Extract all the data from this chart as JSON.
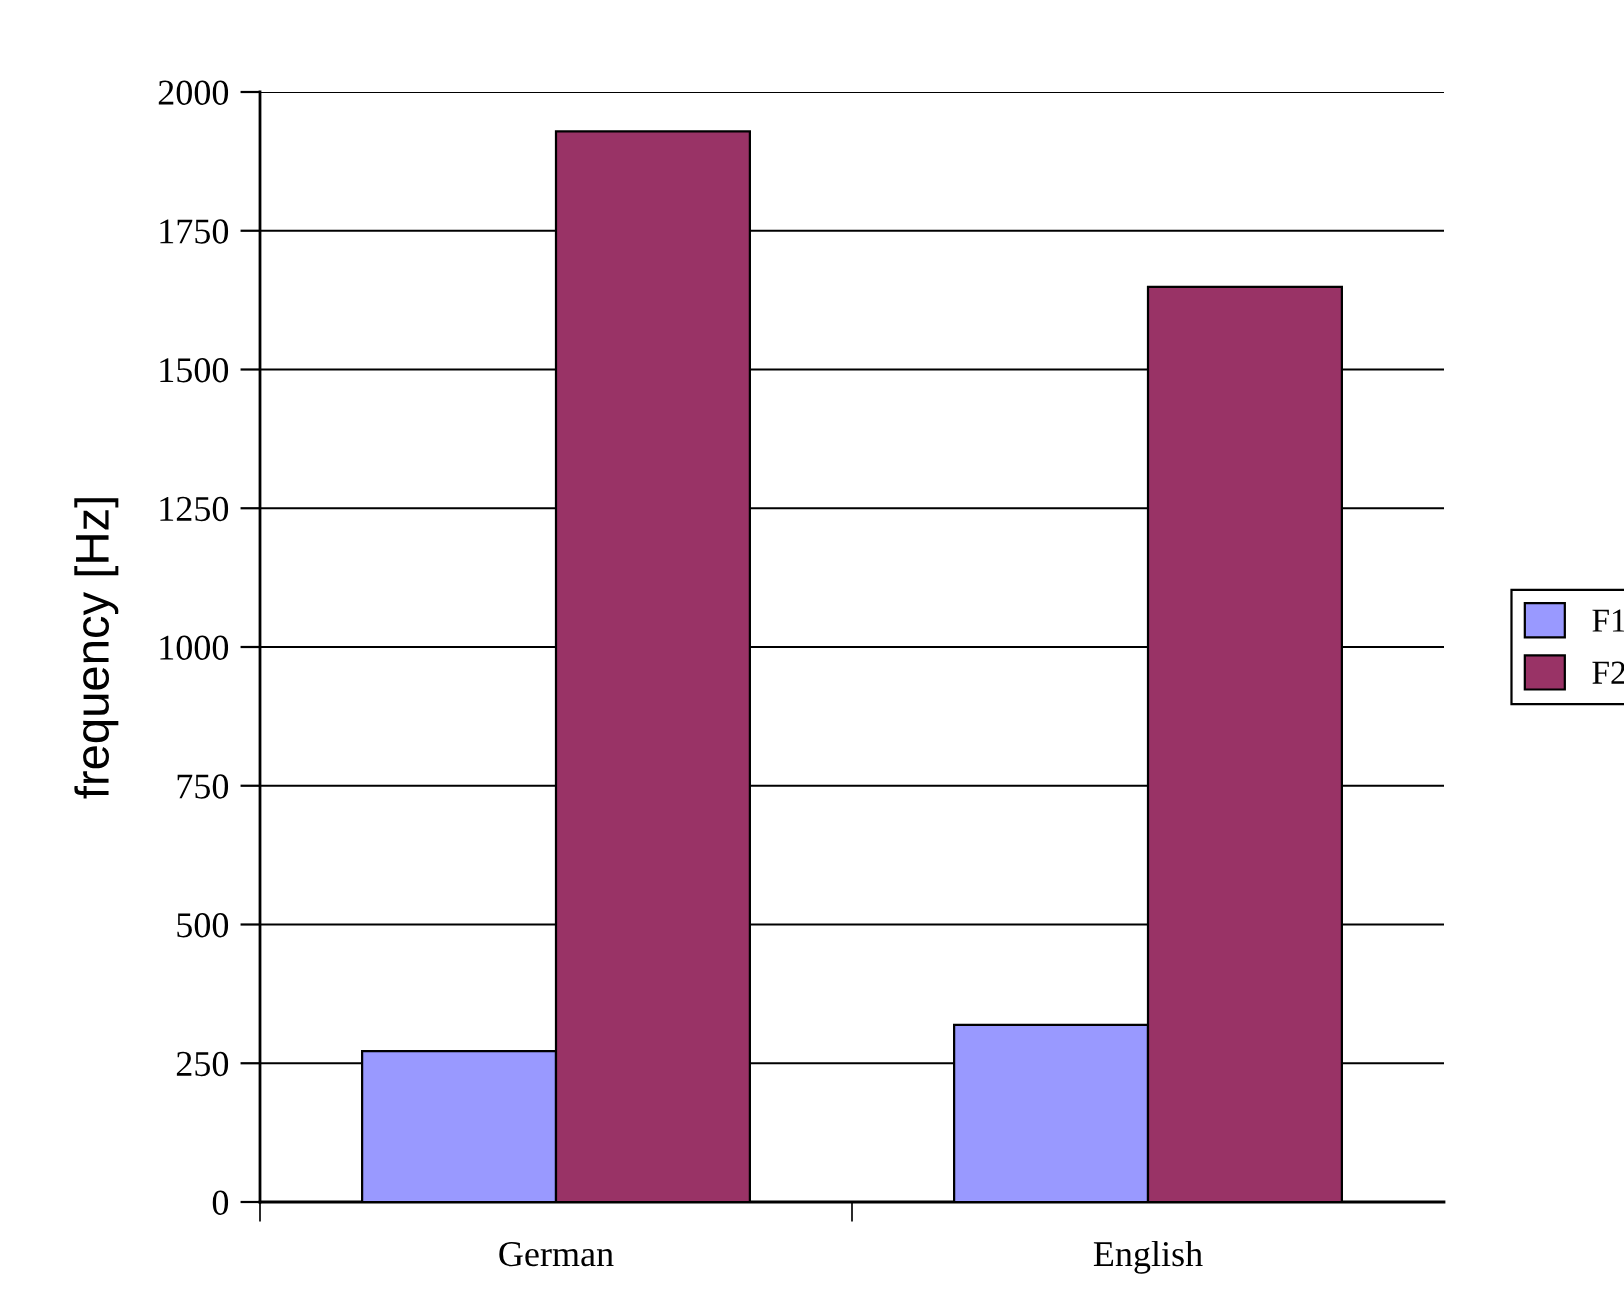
{
  "chart_data": {
    "type": "bar",
    "ylabel": "frequency [Hz]",
    "categories": [
      "German",
      "English"
    ],
    "series": [
      {
        "name": "F1",
        "color": "#9999ff",
        "values": [
          272,
          319
        ]
      },
      {
        "name": "F2",
        "color": "#993366",
        "values": [
          1929,
          1649
        ]
      }
    ],
    "ylim": [
      0,
      2000
    ],
    "yticks": [
      0,
      250,
      500,
      750,
      1000,
      1250,
      1500,
      1750,
      2000
    ],
    "grid": "y",
    "legend": "right"
  }
}
